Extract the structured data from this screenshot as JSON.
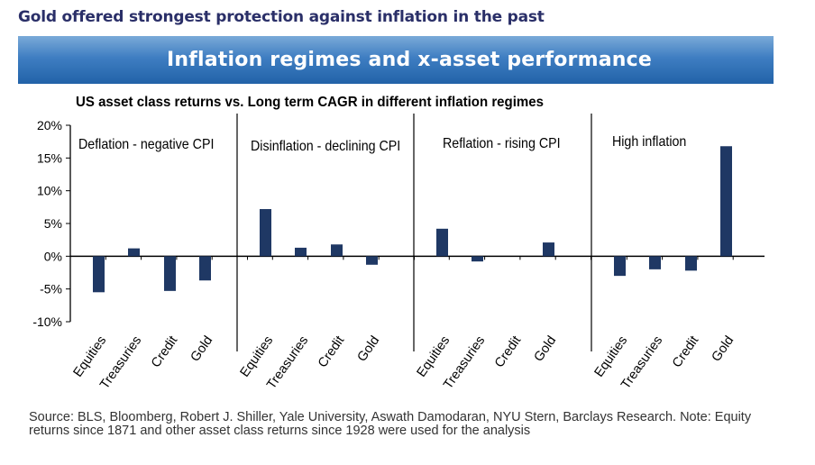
{
  "headline": "Gold offered strongest protection against inflation in the past",
  "banner": {
    "title": "Inflation regimes and x-asset performance"
  },
  "chart_data": {
    "type": "bar",
    "title": "US asset class returns vs. Long term CAGR in different inflation regimes",
    "xlabel": "",
    "ylabel": "",
    "ylim": [
      -10,
      20
    ],
    "yticks": [
      "20%",
      "15%",
      "10%",
      "5%",
      "0%",
      "-5%",
      "-10%"
    ],
    "grid": false,
    "bar_color": "#1f3864",
    "panels": [
      {
        "name": "Deflation - negative CPI",
        "categories": [
          "Equities",
          "Treasuries",
          "Credit",
          "Gold"
        ],
        "values": [
          -5.5,
          1.2,
          -5.3,
          -3.7
        ]
      },
      {
        "name": "Disinflation - declining CPI",
        "categories": [
          "Equities",
          "Treasuries",
          "Credit",
          "Gold"
        ],
        "values": [
          7.2,
          1.3,
          1.8,
          -1.3
        ]
      },
      {
        "name": "Reflation - rising CPI",
        "categories": [
          "Equities",
          "Treasuries",
          "Credit",
          "Gold"
        ],
        "values": [
          4.2,
          -0.8,
          0.0,
          2.1
        ]
      },
      {
        "name": "High inflation",
        "categories": [
          "Equities",
          "Treasuries",
          "Credit",
          "Gold"
        ],
        "values": [
          -3.0,
          -2.0,
          -2.2,
          16.8
        ]
      }
    ]
  },
  "source": "Source: BLS, Bloomberg, Robert J. Shiller, Yale University, Aswath Damodaran, NYU Stern, Barclays Research. Note: Equity returns since 1871 and other asset class returns since 1928 were used for the analysis"
}
